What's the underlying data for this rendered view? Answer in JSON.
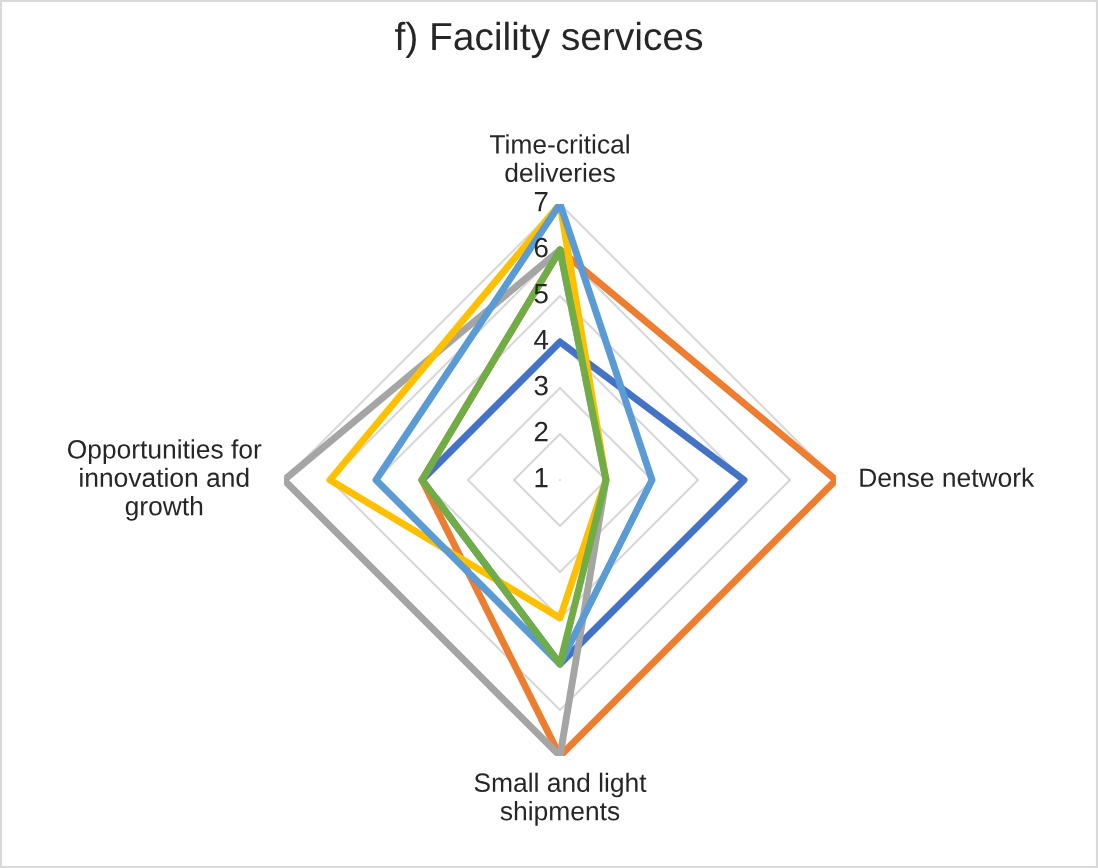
{
  "chart_data": {
    "type": "radar",
    "title": "f) Facility services",
    "categories": [
      "Time-critical\ndeliveries",
      "Dense network",
      "Small and light\nshipments",
      "Opportunities for\ninnovation and\ngrowth"
    ],
    "ylim": [
      1,
      7
    ],
    "yticks": [
      1,
      2,
      3,
      4,
      5,
      6,
      7
    ],
    "grid": true,
    "legend": false,
    "series": [
      {
        "color": "#4472c4",
        "values": [
          4,
          5,
          5,
          4
        ]
      },
      {
        "color": "#ed7d31",
        "values": [
          6,
          7,
          7,
          4
        ]
      },
      {
        "color": "#a5a5a5",
        "values": [
          6,
          2,
          7,
          7
        ]
      },
      {
        "color": "#ffc000",
        "values": [
          7,
          2,
          4,
          6
        ]
      },
      {
        "color": "#5b9bd5",
        "values": [
          7,
          3,
          5,
          5
        ]
      },
      {
        "color": "#70ad47",
        "values": [
          6,
          2,
          5,
          4
        ]
      }
    ]
  }
}
